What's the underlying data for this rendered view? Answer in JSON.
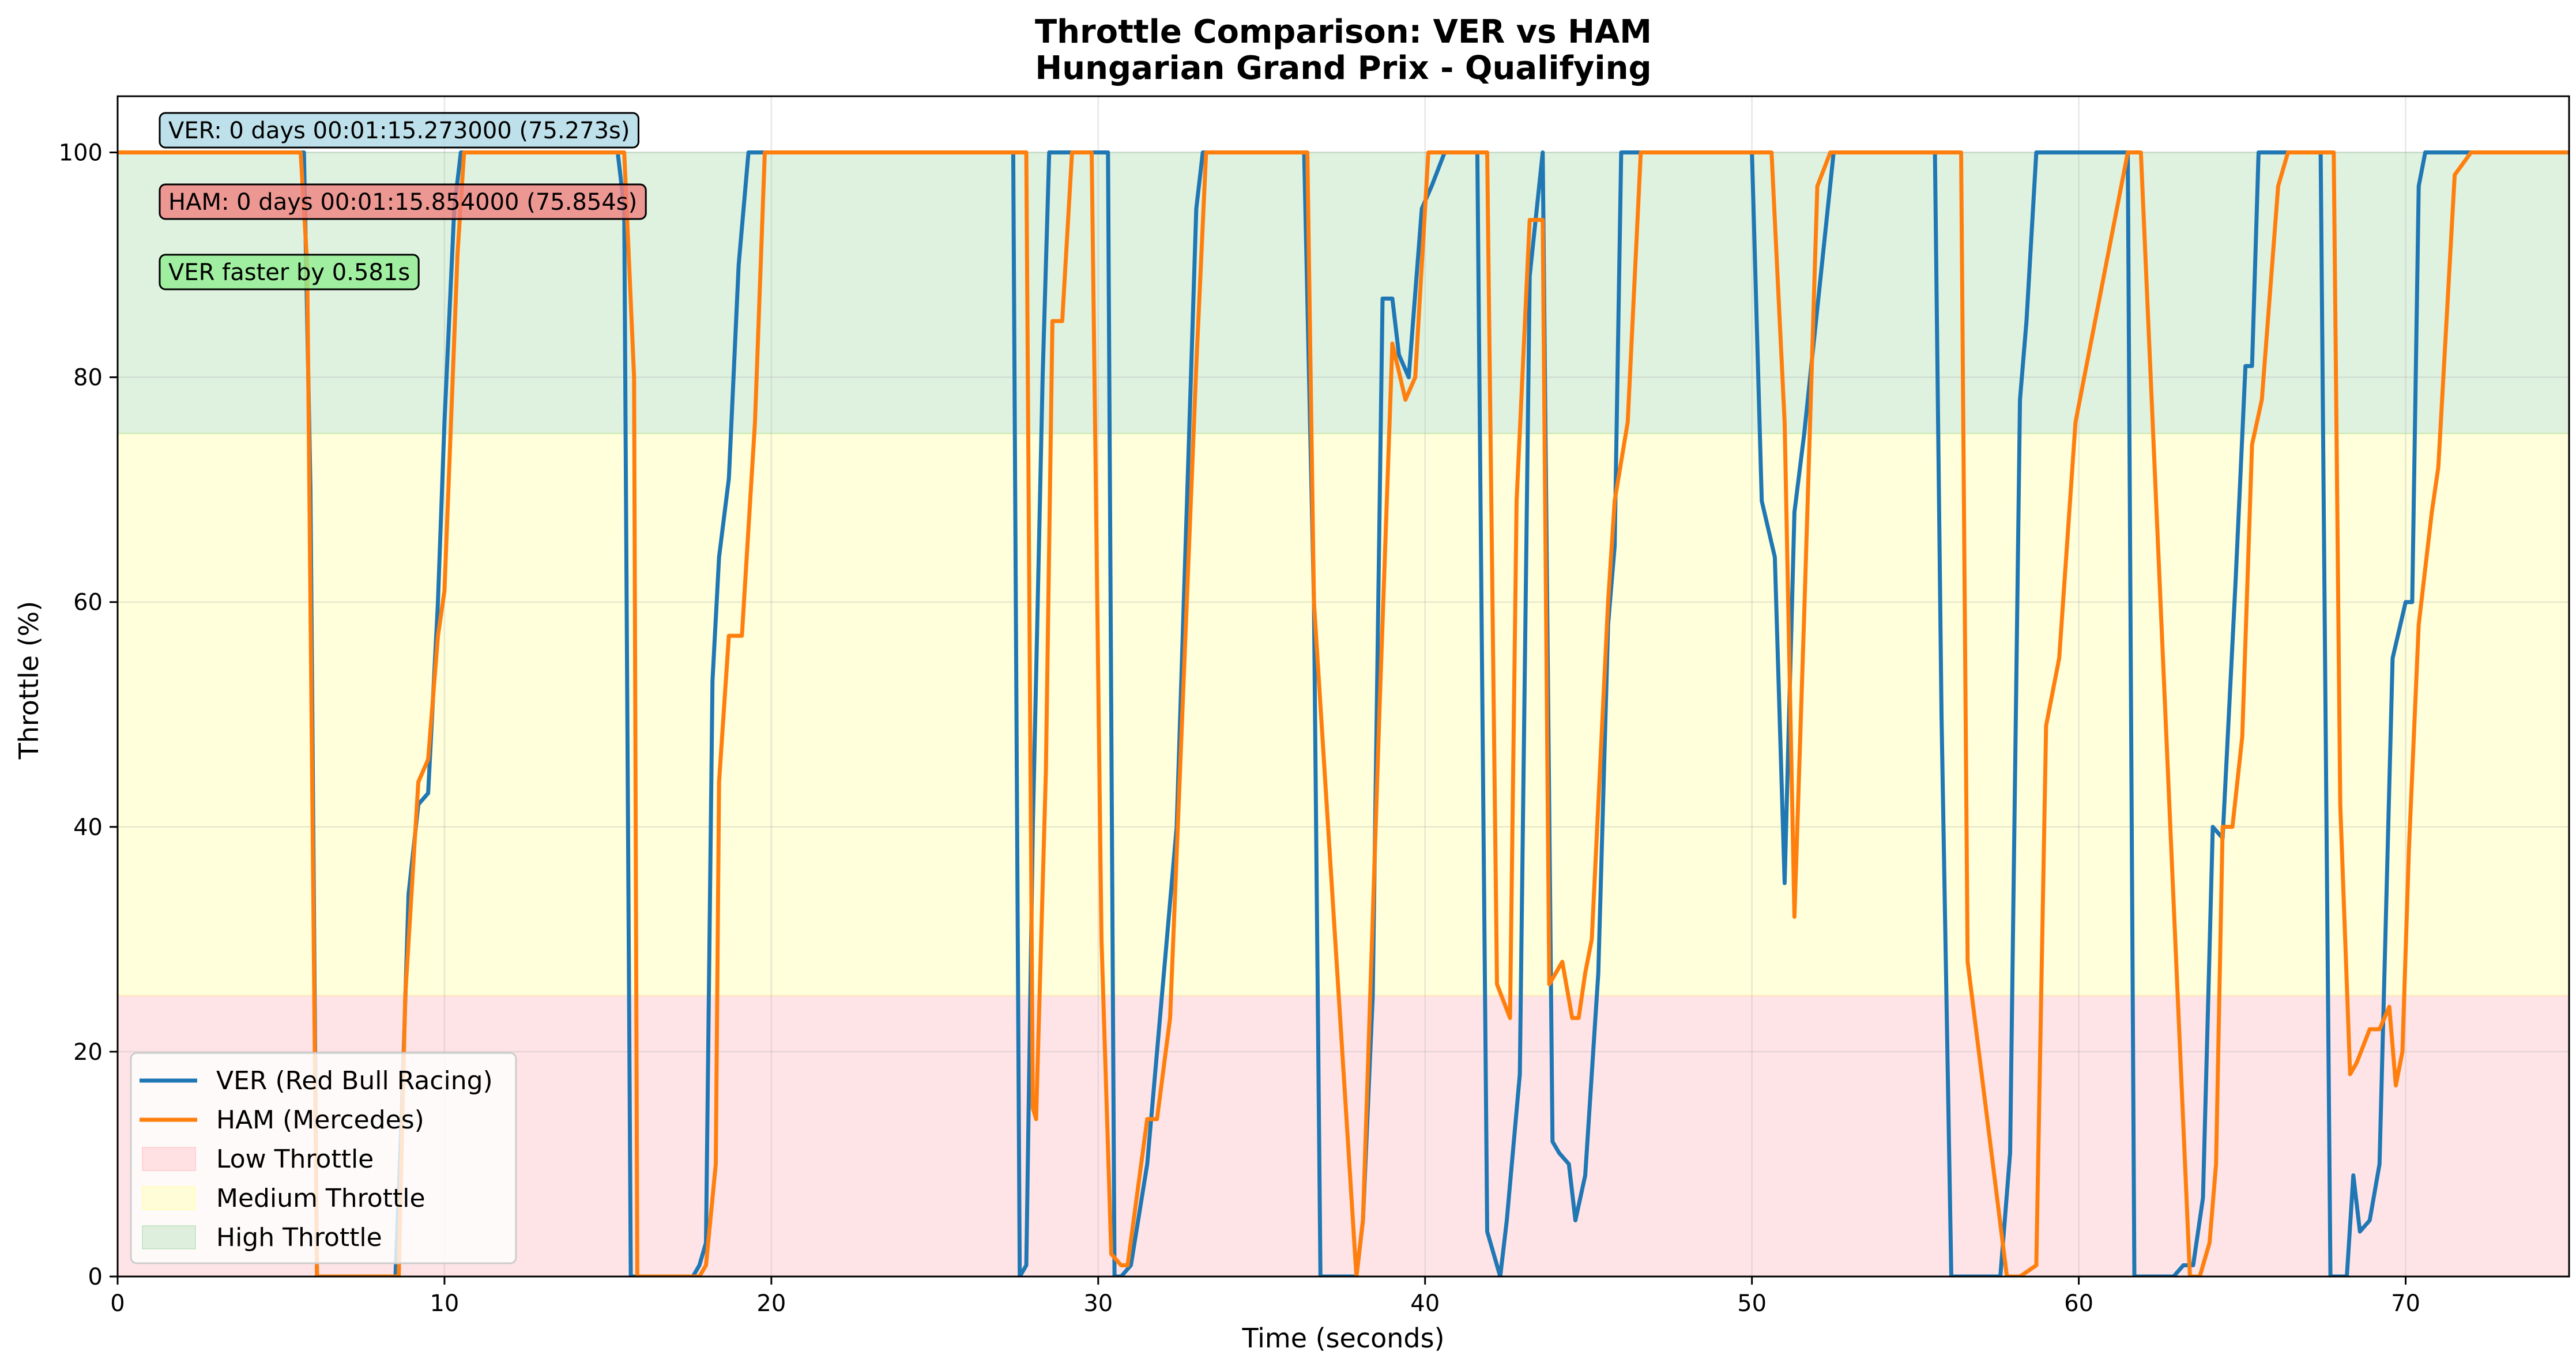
{
  "chart_data": {
    "type": "line",
    "title": "Throttle Comparison: VER vs HAM",
    "subtitle": "Hungarian Grand Prix - Qualifying",
    "xlabel": "Time (seconds)",
    "ylabel": "Throttle (%)",
    "xlim": [
      0,
      75
    ],
    "ylim": [
      0,
      105
    ],
    "grid": true,
    "legend_position": "lower-left",
    "x_ticks": [
      0,
      10,
      20,
      30,
      40,
      50,
      60,
      70
    ],
    "y_ticks": [
      0,
      20,
      40,
      60,
      80,
      100
    ],
    "bands": [
      {
        "name": "Low Throttle",
        "from": 0,
        "to": 25,
        "color": "#ffb3ba"
      },
      {
        "name": "Medium Throttle",
        "from": 25,
        "to": 75,
        "color": "#ffff99"
      },
      {
        "name": "High Throttle",
        "from": 75,
        "to": 100,
        "color": "#a3d9a5"
      }
    ],
    "series": [
      {
        "name": "VER (Red Bull Racing)",
        "color": "#1f77b4",
        "x": [
          0,
          5.7,
          5.9,
          6.1,
          6.4,
          8.5,
          8.7,
          8.9,
          9.2,
          9.5,
          9.8,
          10.0,
          10.3,
          10.5,
          15.3,
          15.5,
          15.7,
          17.3,
          17.6,
          17.8,
          18.0,
          18.2,
          18.4,
          18.7,
          19.0,
          19.3,
          19.5,
          27.4,
          27.6,
          27.8,
          28.0,
          28.3,
          28.5,
          29.0,
          30.3,
          30.5,
          30.7,
          31.0,
          31.5,
          32.4,
          33.0,
          33.2,
          36.3,
          36.6,
          36.8,
          37.9,
          38.1,
          38.4,
          38.7,
          39.0,
          39.2,
          39.5,
          39.9,
          40.2,
          40.6,
          40.8,
          41.6,
          41.9,
          42.3,
          42.5,
          42.9,
          43.2,
          43.6,
          43.9,
          44.1,
          44.4,
          44.6,
          44.9,
          45.3,
          45.6,
          45.8,
          46.0,
          50.0,
          50.3,
          50.7,
          51.0,
          51.3,
          51.6,
          52.5,
          55.6,
          55.8,
          56.1,
          57.6,
          57.9,
          58.2,
          58.4,
          58.7,
          59.0,
          59.2,
          61.5,
          61.7,
          61.9,
          62.9,
          63.2,
          63.5,
          63.8,
          64.1,
          64.4,
          64.8,
          65.1,
          65.3,
          65.5,
          65.8,
          67.4,
          67.7,
          67.9,
          68.2,
          68.4,
          68.6,
          68.9,
          69.2,
          69.6,
          70.0,
          70.2,
          70.4,
          70.6,
          70.8,
          75
        ],
        "values": [
          100,
          100,
          70,
          0,
          0,
          0,
          15,
          34,
          42,
          43,
          60,
          76,
          95,
          100,
          100,
          95,
          0,
          0,
          0,
          1,
          3,
          53,
          64,
          71,
          90,
          100,
          100,
          100,
          0,
          1,
          40,
          80,
          100,
          100,
          100,
          0,
          0,
          1,
          10,
          40,
          95,
          100,
          100,
          60,
          0,
          0,
          5,
          25,
          87,
          87,
          82,
          80,
          95,
          97,
          100,
          100,
          100,
          4,
          0,
          5,
          18,
          89,
          100,
          12,
          11,
          10,
          5,
          9,
          27,
          58,
          65,
          100,
          100,
          69,
          64,
          35,
          68,
          75,
          100,
          100,
          50,
          0,
          0,
          11,
          78,
          85,
          100,
          100,
          100,
          100,
          0,
          0,
          0,
          1,
          1,
          7,
          40,
          39,
          62,
          81,
          81,
          100,
          100,
          100,
          0,
          0,
          0,
          9,
          4,
          5,
          10,
          55,
          60,
          60,
          97,
          100,
          100,
          100
        ],
        "lap_label": "VER: 0 days 00:01:15.273000 (75.273s)"
      },
      {
        "name": "HAM (Mercedes)",
        "color": "#ff7f0e",
        "x": [
          0,
          5.6,
          5.8,
          6.1,
          6.3,
          8.6,
          8.8,
          9.2,
          9.5,
          9.8,
          10.0,
          10.4,
          10.6,
          15.5,
          15.8,
          15.9,
          17.6,
          17.8,
          18.0,
          18.3,
          18.4,
          18.7,
          19.1,
          19.5,
          19.8,
          27.5,
          27.8,
          28.0,
          28.1,
          28.4,
          28.6,
          28.9,
          29.2,
          29.4,
          29.8,
          30.1,
          30.4,
          30.7,
          30.9,
          31.5,
          31.8,
          32.2,
          33.0,
          33.3,
          36.2,
          36.4,
          36.6,
          37.9,
          38.1,
          38.6,
          39.0,
          39.4,
          39.7,
          40.1,
          40.6,
          40.9,
          41.9,
          42.2,
          42.6,
          42.8,
          43.2,
          43.6,
          43.8,
          44.2,
          44.5,
          44.7,
          44.9,
          45.1,
          45.6,
          45.8,
          46.2,
          46.6,
          50.2,
          50.6,
          51.0,
          51.3,
          51.6,
          52.0,
          52.4,
          56.1,
          56.4,
          56.6,
          57.8,
          58.0,
          58.2,
          58.7,
          59.0,
          59.4,
          59.9,
          61.5,
          61.7,
          61.9,
          63.4,
          63.7,
          64.0,
          64.2,
          64.4,
          64.7,
          65.0,
          65.3,
          65.6,
          66.1,
          66.4,
          67.8,
          68.0,
          68.3,
          68.5,
          68.9,
          69.2,
          69.5,
          69.7,
          69.9,
          70.1,
          70.4,
          70.8,
          71.0,
          71.5,
          72.0,
          75
        ],
        "values": [
          100,
          100,
          90,
          0,
          0,
          0,
          25,
          44,
          46,
          57,
          61,
          91,
          100,
          100,
          80,
          0,
          0,
          0,
          1,
          10,
          44,
          57,
          57,
          76,
          100,
          100,
          100,
          15,
          14,
          45,
          85,
          85,
          100,
          100,
          100,
          30,
          2,
          1,
          1,
          14,
          14,
          23,
          81,
          100,
          100,
          100,
          60,
          0,
          5,
          50,
          83,
          78,
          80,
          100,
          100,
          100,
          100,
          26,
          23,
          69,
          94,
          94,
          26,
          28,
          23,
          23,
          27,
          30,
          60,
          69,
          76,
          100,
          100,
          100,
          76,
          32,
          59,
          97,
          100,
          100,
          100,
          28,
          0,
          0,
          0,
          1,
          49,
          55,
          76,
          100,
          100,
          100,
          0,
          0,
          3,
          10,
          40,
          40,
          48,
          74,
          78,
          97,
          100,
          100,
          42,
          18,
          19,
          22,
          22,
          24,
          17,
          20,
          38,
          58,
          68,
          72,
          98,
          100,
          100
        ]
      }
    ],
    "annotations": [
      {
        "text": "VER: 0 days 00:01:15.273000 (75.273s)",
        "bg": "#add8e6"
      },
      {
        "text": "HAM: 0 days 00:01:15.854000 (75.854s)",
        "bg": "#f08080"
      },
      {
        "text": "VER faster by 0.581s",
        "bg": "#90ee90"
      }
    ],
    "legend": [
      "VER (Red Bull Racing)",
      "HAM (Mercedes)",
      "Low Throttle",
      "Medium Throttle",
      "High Throttle"
    ]
  }
}
